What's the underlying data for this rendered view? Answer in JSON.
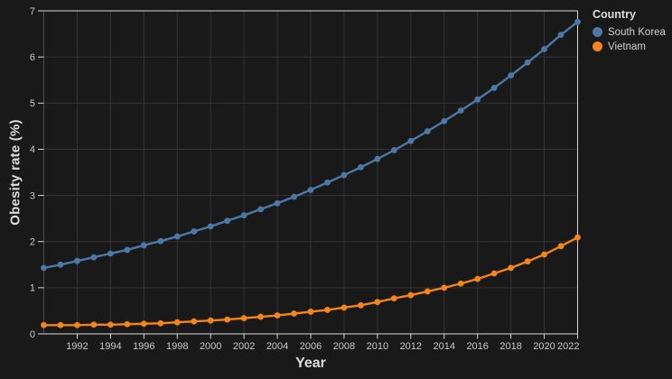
{
  "chart": {
    "background": "#191919",
    "grid_color": "#333333",
    "axis_color": "#d9d9d9",
    "left_edge_color": "#4d4d4d",
    "tick_label_color": "#c9c9c9",
    "title_color": "#dcdcdc"
  },
  "chart_data": {
    "type": "line",
    "title": "",
    "xlabel": "Year",
    "ylabel": "Obesity rate (%)",
    "xlim": [
      1990,
      2022
    ],
    "ylim": [
      0,
      7
    ],
    "x_ticks": [
      1992,
      1994,
      1996,
      1998,
      2000,
      2002,
      2004,
      2006,
      2008,
      2010,
      2012,
      2014,
      2016,
      2018,
      2020,
      2022
    ],
    "y_ticks": [
      0,
      1,
      2,
      3,
      4,
      5,
      6,
      7
    ],
    "grid": true,
    "legend": {
      "title": "Country",
      "position": "top-right"
    },
    "x": [
      1990,
      1991,
      1992,
      1993,
      1994,
      1995,
      1996,
      1997,
      1998,
      1999,
      2000,
      2001,
      2002,
      2003,
      2004,
      2005,
      2006,
      2007,
      2008,
      2009,
      2010,
      2011,
      2012,
      2013,
      2014,
      2015,
      2016,
      2017,
      2018,
      2019,
      2020,
      2021,
      2022
    ],
    "series": [
      {
        "name": "South Korea",
        "color": "#4c78a8",
        "values": [
          1.43,
          1.5,
          1.58,
          1.66,
          1.74,
          1.82,
          1.92,
          2.01,
          2.11,
          2.22,
          2.33,
          2.45,
          2.57,
          2.7,
          2.83,
          2.97,
          3.12,
          3.28,
          3.44,
          3.61,
          3.79,
          3.98,
          4.18,
          4.39,
          4.61,
          4.84,
          5.08,
          5.33,
          5.6,
          5.88,
          6.17,
          6.48,
          6.76
        ]
      },
      {
        "name": "Vietnam",
        "color": "#f58518",
        "values": [
          0.19,
          0.19,
          0.19,
          0.2,
          0.2,
          0.21,
          0.22,
          0.23,
          0.25,
          0.27,
          0.29,
          0.31,
          0.34,
          0.37,
          0.4,
          0.44,
          0.48,
          0.52,
          0.57,
          0.62,
          0.69,
          0.77,
          0.84,
          0.92,
          1.0,
          1.09,
          1.19,
          1.31,
          1.43,
          1.57,
          1.72,
          1.9,
          2.09
        ]
      }
    ]
  }
}
